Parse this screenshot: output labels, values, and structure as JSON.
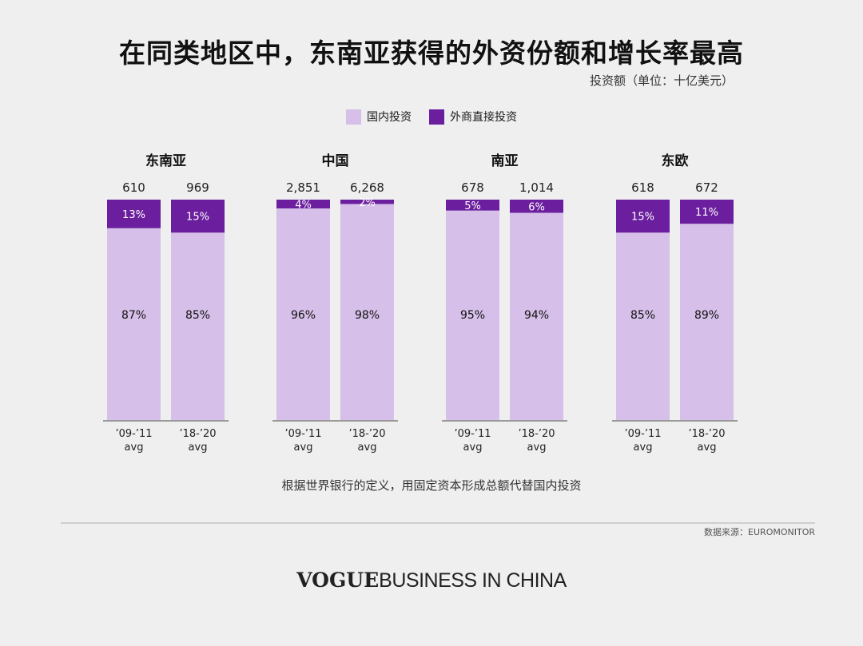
{
  "title": "在同类地区中，东南亚获得的外资份额和增长率最高",
  "unit_label": "投资额（单位：十亿美元）",
  "legend": [
    {
      "label": "国内投资",
      "color": "#d6bfe8"
    },
    {
      "label": "外商直接投资",
      "color": "#6b1f9e"
    }
  ],
  "footnote": "根据世界银行的定义，用固定资本形成总额代替国内投资",
  "source": "数据来源：EUROMONITOR",
  "brand": {
    "vogue": "VOGUE",
    "rest": "BUSINESS IN CHINA"
  },
  "chart_data": {
    "type": "bar",
    "stacked": true,
    "percent_stacked": true,
    "groups": [
      {
        "name": "东南亚",
        "bars": [
          {
            "period": [
              "’09-’11",
              "avg"
            ],
            "total": "610",
            "domestic": 87,
            "fdi": 13
          },
          {
            "period": [
              "’18-’20",
              "avg"
            ],
            "total": "969",
            "domestic": 85,
            "fdi": 15
          }
        ]
      },
      {
        "name": "中国",
        "bars": [
          {
            "period": [
              "’09-’11",
              "avg"
            ],
            "total": "2,851",
            "domestic": 96,
            "fdi": 4
          },
          {
            "period": [
              "’18-’20",
              "avg"
            ],
            "total": "6,268",
            "domestic": 98,
            "fdi": 2
          }
        ]
      },
      {
        "name": "南亚",
        "bars": [
          {
            "period": [
              "’09-’11",
              "avg"
            ],
            "total": "678",
            "domestic": 95,
            "fdi": 5
          },
          {
            "period": [
              "’18-’20",
              "avg"
            ],
            "total": "1,014",
            "domestic": 94,
            "fdi": 6
          }
        ]
      },
      {
        "name": "东欧",
        "bars": [
          {
            "period": [
              "’09-’11",
              "avg"
            ],
            "total": "618",
            "domestic": 85,
            "fdi": 15
          },
          {
            "period": [
              "’18-’20",
              "avg"
            ],
            "total": "672",
            "domestic": 89,
            "fdi": 11
          }
        ]
      }
    ]
  }
}
